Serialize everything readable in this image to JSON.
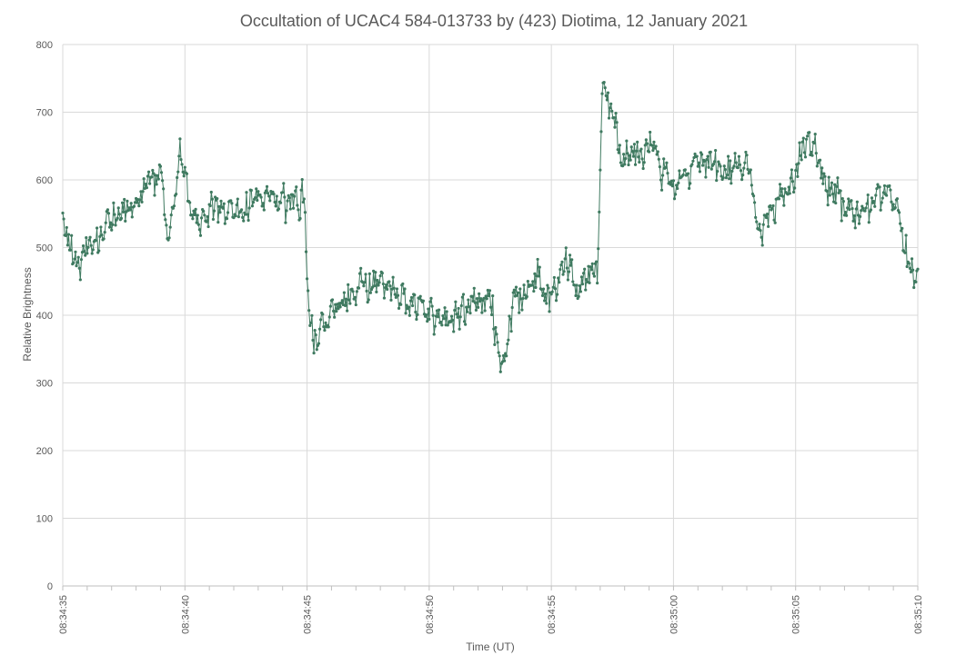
{
  "chart_data": {
    "type": "line",
    "title": "Occultation of UCAC4 584-013733 by (423) Diotima, 12 January 2021",
    "xlabel": "Time (UT)",
    "ylabel": "Relative Brightness",
    "xlim": [
      "08:34:35",
      "08:35:10"
    ],
    "ylim": [
      0,
      800
    ],
    "x_ticks": [
      "08:34:35",
      "08:34:40",
      "08:34:45",
      "08:34:50",
      "08:34:55",
      "08:35:00",
      "08:35:05",
      "08:35:10"
    ],
    "y_ticks": [
      "0",
      "100",
      "200",
      "300",
      "400",
      "500",
      "600",
      "700",
      "800"
    ],
    "grid": true,
    "legend": "none",
    "series_color": "#3f7a60",
    "sample_interval_s": 0.04,
    "series": [
      {
        "level_profile": [
          [
            "08:34:35.0",
            540
          ],
          [
            "08:34:35.5",
            470
          ],
          [
            "08:34:36.5",
            520
          ],
          [
            "08:34:37.5",
            560
          ],
          [
            "08:34:38.5",
            590
          ],
          [
            "08:34:39.0",
            610
          ],
          [
            "08:34:39.3",
            500
          ],
          [
            "08:34:39.8",
            650
          ],
          [
            "08:34:40.2",
            560
          ],
          [
            "08:34:42.0",
            540
          ],
          [
            "08:34:43.0",
            580
          ],
          [
            "08:34:44.0",
            560
          ],
          [
            "08:34:44.9",
            575
          ],
          [
            "08:34:45.1",
            360
          ],
          [
            "08:34:46.5",
            420
          ],
          [
            "08:34:47.5",
            440
          ],
          [
            "08:34:48.5",
            440
          ],
          [
            "08:34:49.5",
            420
          ],
          [
            "08:34:50.5",
            400
          ],
          [
            "08:34:51.5",
            410
          ],
          [
            "08:34:52.5",
            420
          ],
          [
            "08:34:53.0",
            320
          ],
          [
            "08:34:53.5",
            420
          ],
          [
            "08:34:54.5",
            460
          ],
          [
            "08:34:55.0",
            420
          ],
          [
            "08:34:55.8",
            500
          ],
          [
            "08:34:56.0",
            440
          ],
          [
            "08:34:56.9",
            470
          ],
          [
            "08:34:57.1",
            740
          ],
          [
            "08:34:57.5",
            700
          ],
          [
            "08:34:58.0",
            630
          ],
          [
            "08:34:59.0",
            650
          ],
          [
            "08:35:00.0",
            590
          ],
          [
            "08:35:01.0",
            640
          ],
          [
            "08:35:02.0",
            610
          ],
          [
            "08:35:03.0",
            630
          ],
          [
            "08:35:03.6",
            520
          ],
          [
            "08:35:04.0",
            550
          ],
          [
            "08:35:05.0",
            610
          ],
          [
            "08:35:05.5",
            680
          ],
          [
            "08:35:06.0",
            610
          ],
          [
            "08:35:07.0",
            560
          ],
          [
            "08:35:08.0",
            560
          ],
          [
            "08:35:09.0",
            580
          ],
          [
            "08:35:09.8",
            450
          ],
          [
            "08:35:10.0",
            480
          ]
        ],
        "noise_amplitude": 45
      }
    ]
  }
}
